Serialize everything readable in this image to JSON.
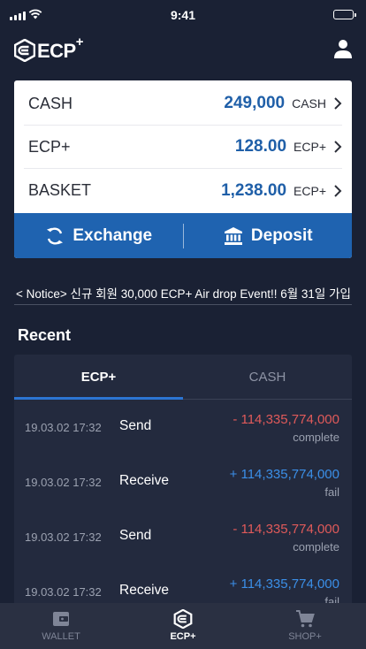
{
  "status_bar": {
    "time": "9:41"
  },
  "header": {
    "logo_text": "ECP",
    "logo_superscript": "+"
  },
  "balances": [
    {
      "label": "CASH",
      "value": "249,000",
      "unit": "CASH"
    },
    {
      "label": "ECP+",
      "value": "128.00",
      "unit": "ECP+"
    },
    {
      "label": "BASKET",
      "value": "1,238.00",
      "unit": "ECP+"
    }
  ],
  "actions": {
    "exchange": "Exchange",
    "deposit": "Deposit"
  },
  "notice": "< Notice> 신규 회원 30,000 ECP+ Air drop Event!! 6월 31일 가입",
  "recent": {
    "title": "Recent",
    "tabs": [
      {
        "label": "ECP+",
        "active": true
      },
      {
        "label": "CASH",
        "active": false
      }
    ],
    "transactions": [
      {
        "date": "19.03.02 17:32",
        "type": "Send",
        "amount": "- 114,335,774,000",
        "status": "complete"
      },
      {
        "date": "19.03.02 17:32",
        "type": "Receive",
        "amount": "+ 114,335,774,000",
        "status": "fail"
      },
      {
        "date": "19.03.02 17:32",
        "type": "Send",
        "amount": "- 114,335,774,000",
        "status": "complete"
      },
      {
        "date": "19.03.02 17:32",
        "type": "Receive",
        "amount": "+ 114,335,774,000",
        "status": "fail"
      }
    ]
  },
  "nav": [
    {
      "label": "WALLET",
      "icon": "wallet-icon",
      "active": false
    },
    {
      "label": "ECP+",
      "icon": "ecp-logo-icon",
      "active": true
    },
    {
      "label": "SHOP+",
      "icon": "cart-icon",
      "active": false
    }
  ],
  "colors": {
    "background": "#1a2134",
    "accent_blue": "#1f63b0",
    "value_blue": "#1f5fa8",
    "negative": "#e05a5a",
    "positive": "#3b8fe8"
  }
}
